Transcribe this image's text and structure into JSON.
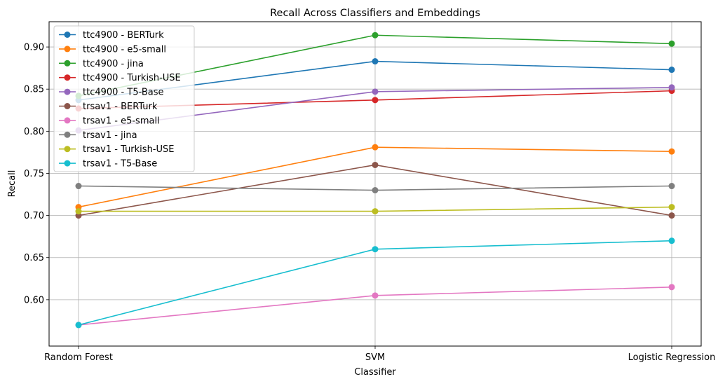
{
  "chart_data": {
    "type": "line",
    "title": "Recall Across Classifiers and Embeddings",
    "xlabel": "Classifier",
    "ylabel": "Recall",
    "categories": [
      "Random Forest",
      "SVM",
      "Logistic Regression"
    ],
    "ylim": [
      0.545,
      0.93
    ],
    "yticks": [
      "0.60",
      "0.65",
      "0.70",
      "0.75",
      "0.80",
      "0.85",
      "0.90"
    ],
    "ytick_values": [
      0.6,
      0.65,
      0.7,
      0.75,
      0.8,
      0.85,
      0.9
    ],
    "grid": true,
    "legend_position": "top-left",
    "series": [
      {
        "name": "ttc4900 - BERTurk",
        "color": "#1f77b4",
        "values": [
          0.837,
          0.883,
          0.873
        ]
      },
      {
        "name": "ttc4900 - e5-small",
        "color": "#ff7f0e",
        "values": [
          0.71,
          0.781,
          0.776
        ]
      },
      {
        "name": "ttc4900 - jina",
        "color": "#2ca02c",
        "values": [
          0.842,
          0.914,
          0.904
        ]
      },
      {
        "name": "ttc4900 - Turkish-USE",
        "color": "#d62728",
        "values": [
          0.827,
          0.837,
          0.848
        ]
      },
      {
        "name": "ttc4900 - T5-Base",
        "color": "#9467bd",
        "values": [
          0.801,
          0.847,
          0.852
        ]
      },
      {
        "name": "trsav1 - BERTurk",
        "color": "#8c564b",
        "values": [
          0.7,
          0.76,
          0.7
        ]
      },
      {
        "name": "trsav1 - e5-small",
        "color": "#e377c2",
        "values": [
          0.57,
          0.605,
          0.615
        ]
      },
      {
        "name": "trsav1 - jina",
        "color": "#7f7f7f",
        "values": [
          0.735,
          0.73,
          0.735
        ]
      },
      {
        "name": "trsav1 - Turkish-USE",
        "color": "#bcbd22",
        "values": [
          0.705,
          0.705,
          0.71
        ]
      },
      {
        "name": "trsav1 - T5-Base",
        "color": "#17becf",
        "values": [
          0.57,
          0.66,
          0.67
        ]
      }
    ]
  }
}
